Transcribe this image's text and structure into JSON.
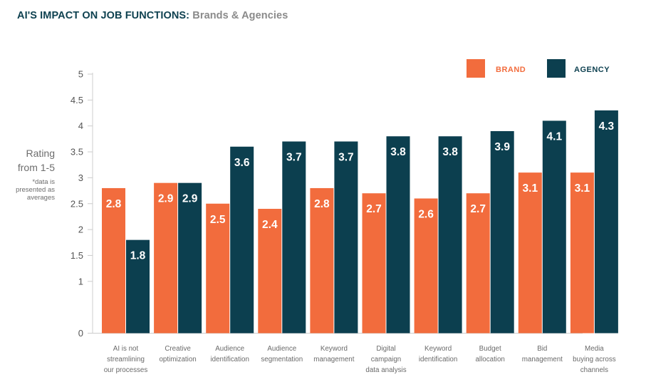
{
  "title": {
    "main": "AI'S IMPACT ON JOB FUNCTIONS:",
    "sub": "Brands & Agencies"
  },
  "y_axis_label": {
    "line1": "Rating",
    "line2": "from 1-5",
    "note_lines": [
      "*data is",
      "presented as",
      "averages"
    ]
  },
  "colors": {
    "brand": "#f26c3d",
    "agency": "#0c3f4f",
    "title": "#0e4150",
    "subtitle": "#8a8a8a"
  },
  "chart_data": {
    "type": "bar",
    "title": "AI'S IMPACT ON JOB FUNCTIONS: Brands & Agencies",
    "xlabel": "",
    "ylabel": "Rating from 1-5",
    "ylabel_note": "*data is presented as averages",
    "ylim": [
      0,
      5
    ],
    "yticks": [
      "0",
      "1",
      "1.5",
      "2",
      "2.5",
      "3",
      "3.5",
      "4",
      "4.5",
      "5"
    ],
    "ytick_values": [
      0,
      1,
      1.5,
      2,
      2.5,
      3,
      3.5,
      4,
      4.5,
      5
    ],
    "grid": false,
    "legend_position": "top-right",
    "categories": [
      [
        "AI is not",
        "streamlining",
        "our processes"
      ],
      [
        "Creative",
        "optimization"
      ],
      [
        "Audience",
        "identification"
      ],
      [
        "Audience",
        "segmentation"
      ],
      [
        "Keyword",
        "management"
      ],
      [
        "Digital",
        "campaign",
        "data analysis"
      ],
      [
        "Keyword",
        "identification"
      ],
      [
        "Budget",
        "allocation"
      ],
      [
        "Bid",
        "management"
      ],
      [
        "Media",
        "buying across",
        "channels"
      ]
    ],
    "series": [
      {
        "name": "BRAND",
        "color": "#f26c3d",
        "values": [
          2.8,
          2.9,
          2.5,
          2.4,
          2.8,
          2.7,
          2.6,
          2.7,
          3.1,
          3.1
        ]
      },
      {
        "name": "AGENCY",
        "color": "#0c3f4f",
        "values": [
          1.8,
          2.9,
          3.6,
          3.7,
          3.7,
          3.8,
          3.8,
          3.9,
          4.1,
          4.3
        ]
      }
    ]
  }
}
